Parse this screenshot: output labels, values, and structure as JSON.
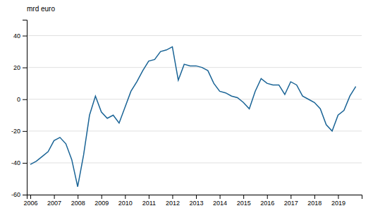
{
  "chart_data": {
    "type": "line",
    "y_label": "mrd euro",
    "color": "#1a6496",
    "grid": "y",
    "xlim": [
      2005.85,
      2020.0
    ],
    "xticks": [
      2006,
      2007,
      2008,
      2009,
      2010,
      2011,
      2012,
      2013,
      2014,
      2015,
      2016,
      2017,
      2018,
      2019
    ],
    "ylim": [
      -60,
      50
    ],
    "yticks": [
      -60,
      -40,
      -20,
      0,
      20,
      40
    ],
    "x": [
      2006.0,
      2006.25,
      2006.5,
      2006.75,
      2007.0,
      2007.25,
      2007.5,
      2007.75,
      2008.0,
      2008.25,
      2008.5,
      2008.75,
      2009.0,
      2009.25,
      2009.5,
      2009.75,
      2010.0,
      2010.25,
      2010.5,
      2010.75,
      2011.0,
      2011.25,
      2011.5,
      2011.75,
      2012.0,
      2012.25,
      2012.5,
      2012.75,
      2013.0,
      2013.25,
      2013.5,
      2013.75,
      2014.0,
      2014.25,
      2014.5,
      2014.75,
      2015.0,
      2015.25,
      2015.5,
      2015.75,
      2016.0,
      2016.25,
      2016.5,
      2016.75,
      2017.0,
      2017.25,
      2017.5,
      2017.75,
      2018.0,
      2018.25,
      2018.5,
      2018.75,
      2019.0,
      2019.25,
      2019.5,
      2019.75
    ],
    "values": [
      -41,
      -39,
      -36,
      -33,
      -26,
      -24,
      -28,
      -38,
      -55,
      -35,
      -10,
      2,
      -8,
      -12,
      -10,
      -15,
      -5,
      5,
      11,
      18,
      24,
      25,
      30,
      31,
      33,
      12,
      22,
      21,
      21,
      20,
      18,
      10,
      5,
      4,
      2,
      1,
      -2,
      -6,
      5,
      13,
      10,
      9,
      9,
      3,
      11,
      9,
      2,
      0,
      -2,
      -6,
      -16,
      -20,
      -10,
      -7,
      2,
      8
    ]
  }
}
